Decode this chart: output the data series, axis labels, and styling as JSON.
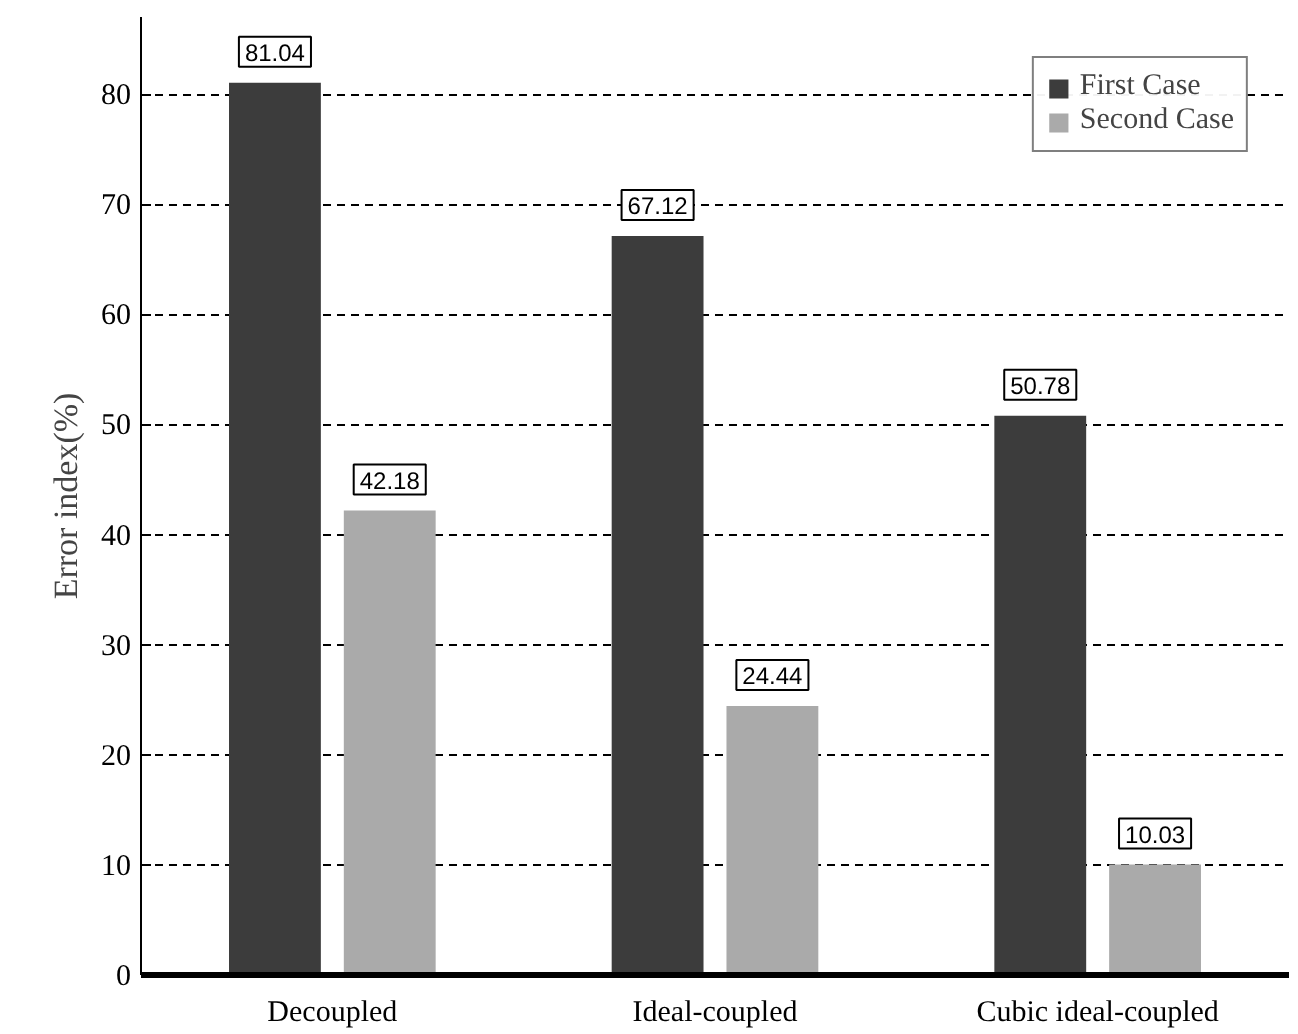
{
  "chart_data": {
    "type": "bar",
    "ylabel": "Error index(%)",
    "categories": [
      "Decoupled",
      "Ideal-coupled",
      "Cubic ideal-coupled"
    ],
    "series": [
      {
        "name": "First Case",
        "color": "#3c3c3c",
        "values": [
          81.04,
          67.12,
          50.78
        ]
      },
      {
        "name": "Second Case",
        "color": "#aaaaaa",
        "values": [
          42.18,
          24.44,
          10.03
        ]
      }
    ],
    "ylim": [
      0,
      87
    ],
    "yticks": [
      0,
      10,
      20,
      30,
      40,
      50,
      60,
      70,
      80
    ],
    "grid": "y",
    "legend": "top right",
    "data_labels": true
  }
}
